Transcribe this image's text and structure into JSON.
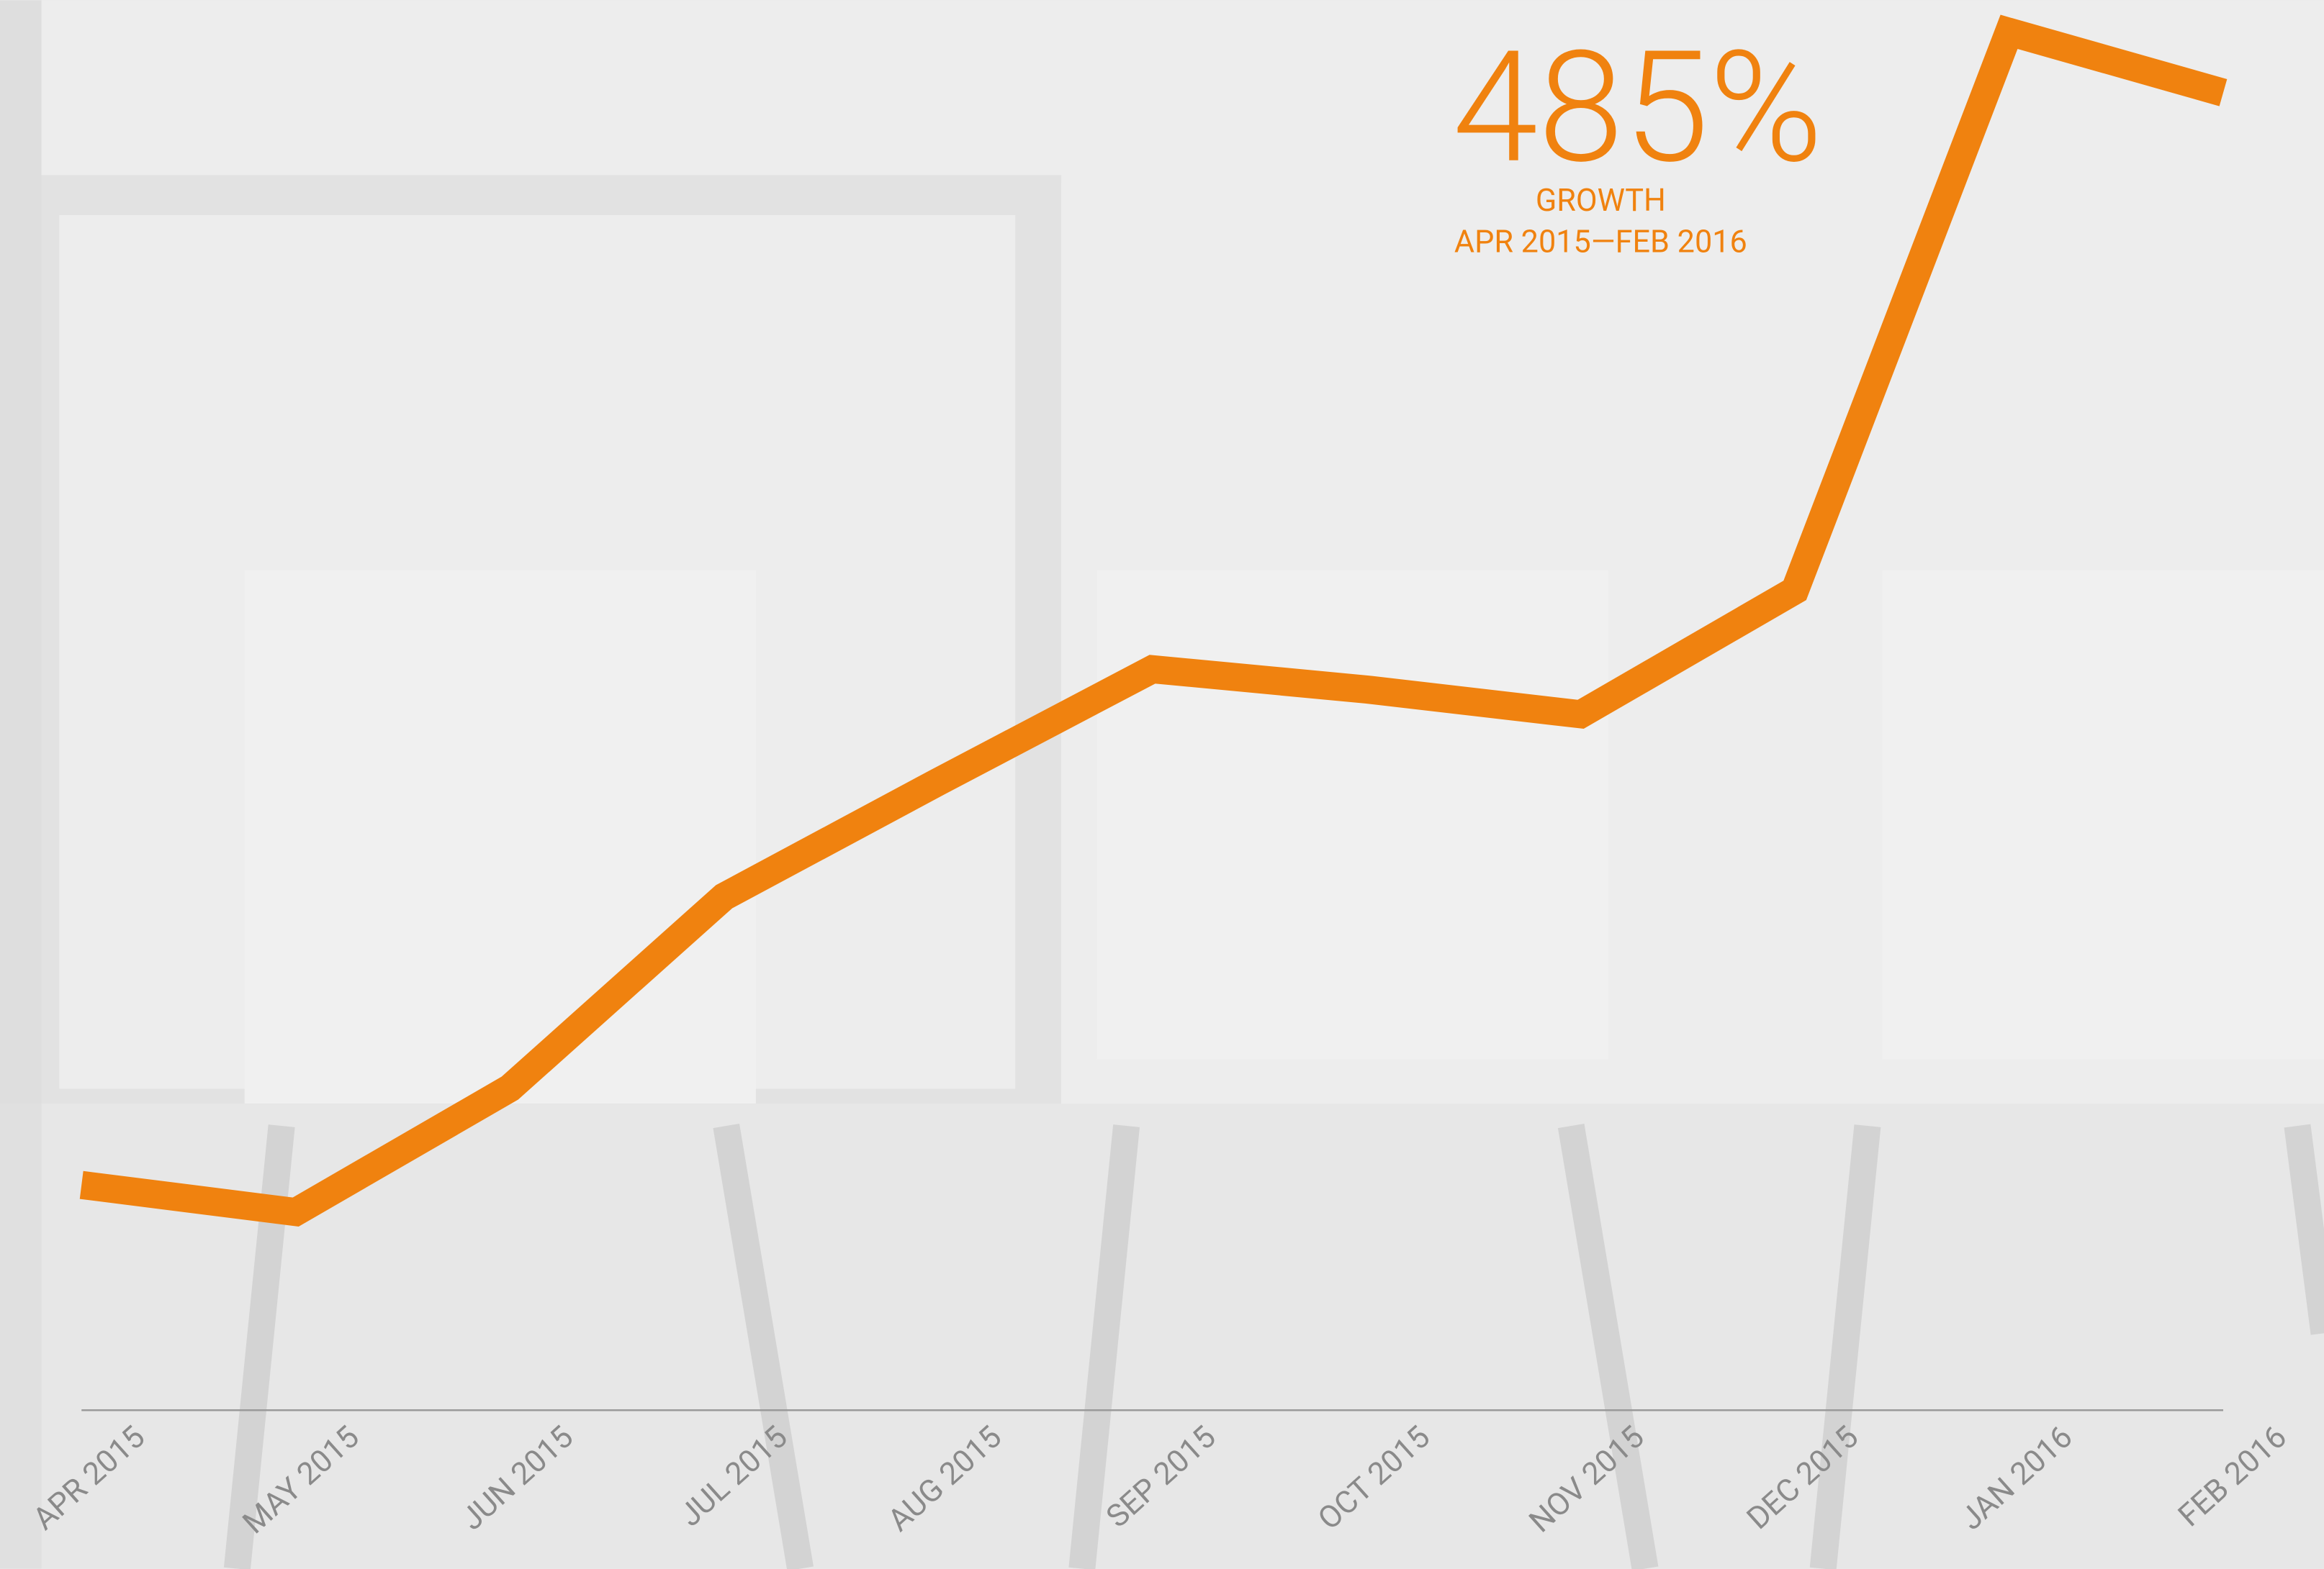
{
  "chart_data": {
    "type": "line",
    "annotations": [
      "485%",
      "GROWTH",
      "APR 2015—FEB 2016"
    ],
    "categories": [
      "APR 2015",
      "MAY 2015",
      "JUN 2015",
      "JUL 2015",
      "AUG 2015",
      "SEP 2015",
      "OCT 2015",
      "NOV 2015",
      "DEC 2015",
      "JAN 2016",
      "FEB 2016"
    ],
    "values": [
      100,
      88,
      143,
      228,
      279,
      329,
      320,
      309,
      364,
      612,
      585
    ],
    "color": "#f0820f",
    "ylim": [
      0,
      626
    ]
  }
}
